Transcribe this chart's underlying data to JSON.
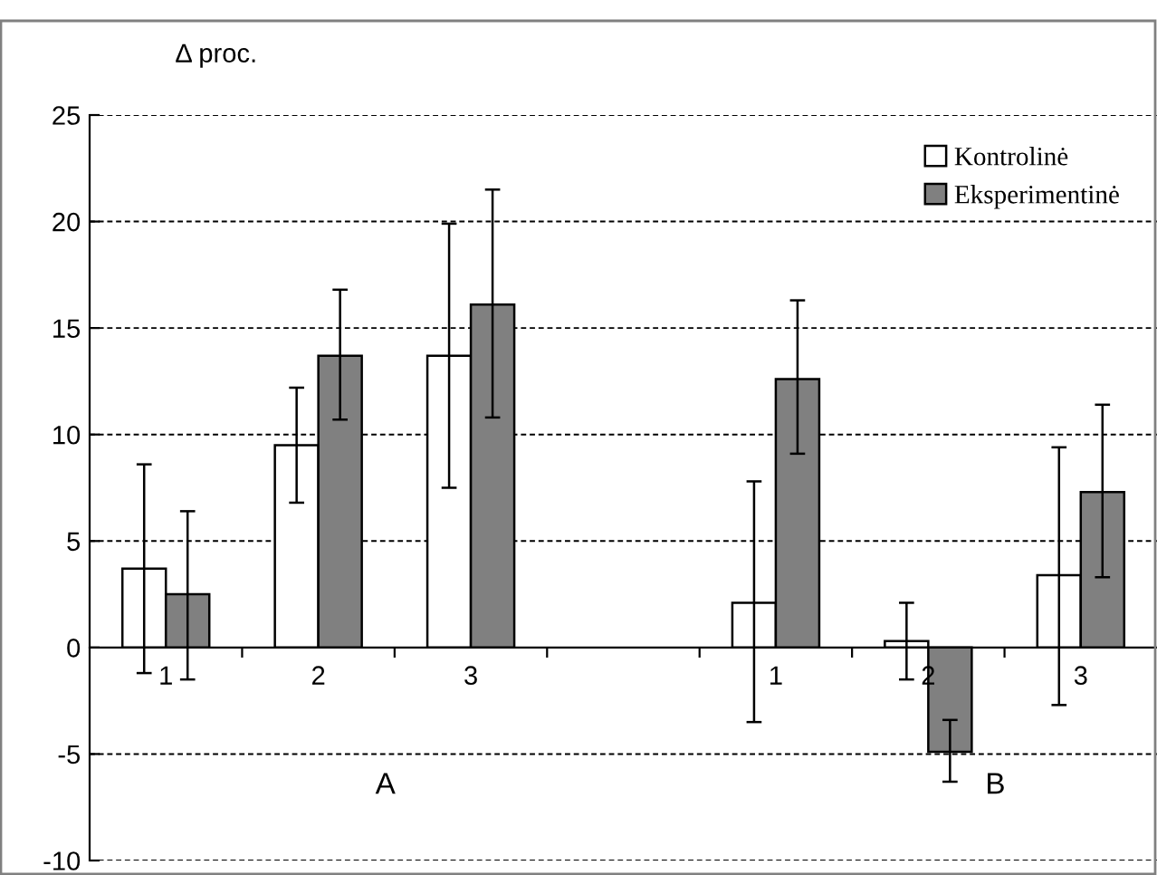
{
  "chart_data": {
    "type": "bar",
    "ylabel": "Δ proc.",
    "categories": [
      "1",
      "2",
      "3",
      null,
      "1",
      "2",
      "3"
    ],
    "series": [
      {
        "name": "Kontrolinė",
        "color": "#ffffff",
        "values": [
          3.7,
          9.5,
          13.7,
          null,
          2.1,
          0.3,
          3.4
        ],
        "errors": [
          [
            -1.2,
            8.6
          ],
          [
            6.8,
            12.2
          ],
          [
            7.5,
            19.9
          ],
          null,
          [
            -3.5,
            7.8
          ],
          [
            -1.5,
            2.1
          ],
          [
            -2.7,
            9.4
          ]
        ]
      },
      {
        "name": "Eksperimentinė",
        "color": "#808080",
        "values": [
          2.5,
          13.7,
          16.1,
          null,
          12.6,
          -4.9,
          7.3
        ],
        "errors": [
          [
            -1.5,
            6.4
          ],
          [
            10.7,
            16.8
          ],
          [
            10.8,
            21.5
          ],
          null,
          [
            9.1,
            16.3
          ],
          [
            -6.3,
            -3.4
          ],
          [
            3.3,
            11.4
          ]
        ]
      }
    ],
    "ylim": [
      -10,
      25
    ],
    "yticks": [
      -10,
      -5,
      0,
      5,
      10,
      15,
      20,
      25
    ],
    "grid": "y",
    "legend": "top right",
    "annotations": [
      "A",
      "B"
    ]
  }
}
